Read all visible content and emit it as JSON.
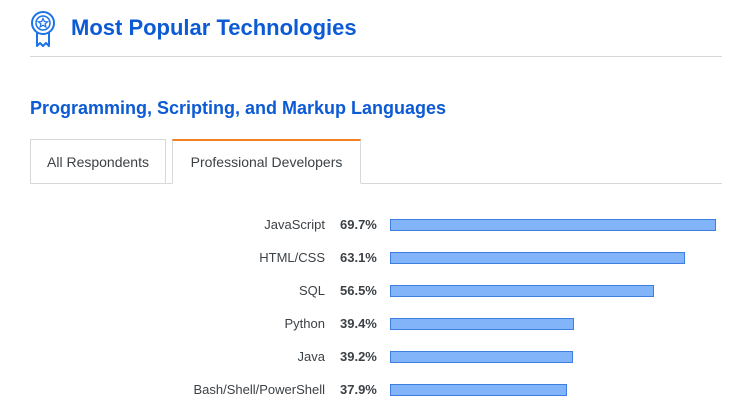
{
  "header": {
    "title": "Most Popular Technologies",
    "icon": "award-badge-icon"
  },
  "section": {
    "title": "Programming, Scripting, and Markup Languages"
  },
  "tabs": [
    {
      "label": "All Respondents",
      "active": false
    },
    {
      "label": "Professional Developers",
      "active": true
    }
  ],
  "colors": {
    "accent": "#0c5ad4",
    "bar_fill": "#81b4f8",
    "bar_border": "#3d7ee0",
    "active_tab": "#f48024"
  },
  "chart_data": {
    "type": "bar",
    "orientation": "horizontal",
    "categories": [
      "JavaScript",
      "HTML/CSS",
      "SQL",
      "Python",
      "Java",
      "Bash/Shell/PowerShell"
    ],
    "values": [
      69.7,
      63.1,
      56.5,
      39.4,
      39.2,
      37.9
    ],
    "value_labels": [
      "69.7%",
      "63.1%",
      "56.5%",
      "39.4%",
      "39.2%",
      "37.9%"
    ],
    "unit": "%"
  }
}
